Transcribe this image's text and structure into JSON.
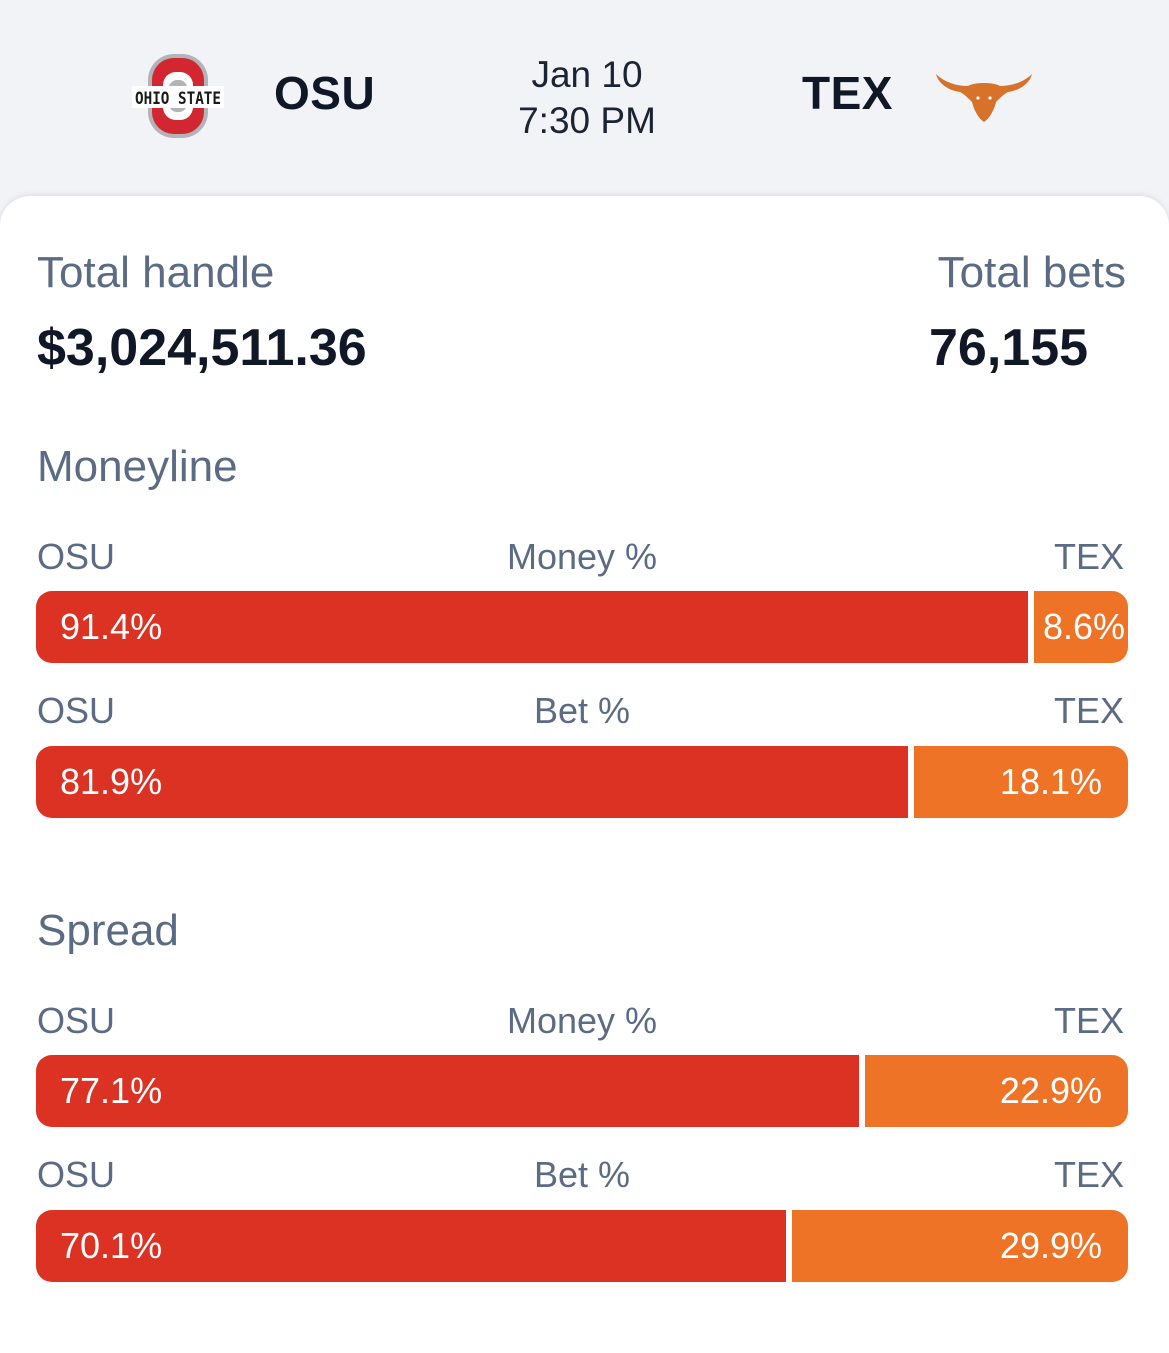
{
  "game": {
    "home_team": "OSU",
    "away_team": "TEX",
    "date": "Jan 10",
    "time": "7:30 PM",
    "home_logo_icon": "ohio-state-logo",
    "home_logo_text": "OHIO STATE",
    "away_logo_icon": "longhorn-logo"
  },
  "summary": {
    "handle_label": "Total handle",
    "handle_value": "$3,024,511.36",
    "bets_label": "Total bets",
    "bets_value": "76,155"
  },
  "colors": {
    "home_bar": "#dc3223",
    "away_bar": "#ee7326",
    "label_text": "#5b6b84",
    "value_text": "#101828"
  },
  "sections": [
    {
      "title": "Moneyline",
      "rows": [
        {
          "left_label": "OSU",
          "metric": "Money %",
          "right_label": "TEX",
          "home_pct": 91.4,
          "away_pct": 8.6,
          "home_text": "91.4%",
          "away_text": "8.6%"
        },
        {
          "left_label": "OSU",
          "metric": "Bet %",
          "right_label": "TEX",
          "home_pct": 81.9,
          "away_pct": 18.1,
          "home_text": "81.9%",
          "away_text": "18.1%"
        }
      ]
    },
    {
      "title": "Spread",
      "rows": [
        {
          "left_label": "OSU",
          "metric": "Money %",
          "right_label": "TEX",
          "home_pct": 77.1,
          "away_pct": 22.9,
          "home_text": "77.1%",
          "away_text": "22.9%"
        },
        {
          "left_label": "OSU",
          "metric": "Bet %",
          "right_label": "TEX",
          "home_pct": 70.1,
          "away_pct": 29.9,
          "home_text": "70.1%",
          "away_text": "29.9%"
        }
      ]
    }
  ]
}
